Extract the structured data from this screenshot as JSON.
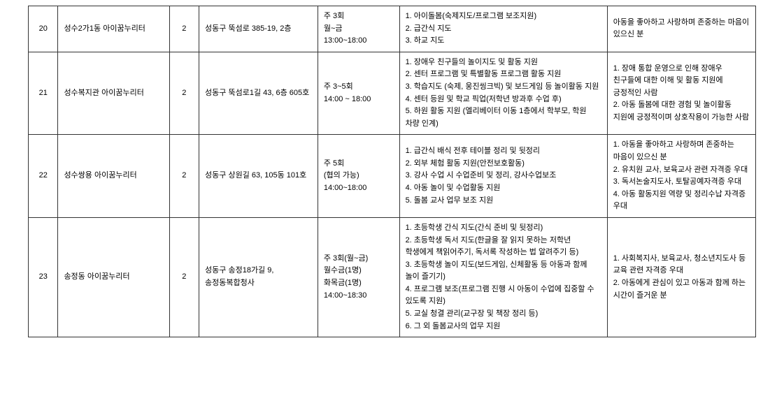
{
  "rows": [
    {
      "num": "20",
      "name": "성수2가1동 아이꿈누리터",
      "count": "2",
      "addr": "성동구 뚝섬로 385-19, 2층",
      "time": "주 3회\n월~금\n13:00~18:00",
      "duties": "1. 아이돌봄(숙제지도/프로그램 보조지원)\n2. 급간식 지도\n3. 하교 지도",
      "qual": "아동을 좋아하고 사랑하며 존중하는 마음이 있으신 분"
    },
    {
      "num": "21",
      "name": "성수복지관 아이꿈누리터",
      "count": "2",
      "addr": "성동구 뚝섬로1길 43, 6층 605호",
      "time": "주 3~5회\n14:00 ~ 18:00",
      "duties": "1. 장애우 친구들의 놀이지도 및 활동 지원\n2. 센터 프로그램 및 특별활동 프로그램 활동 지원\n3. 학습지도 (숙제, 웅진씽크빅) 및 보드게임 등 놀이활동 지원\n4. 센터 등원 및 학교 픽업(저학년 방과후 수업 후)\n5. 하원 활동 지원 (엘리베이터 이동 1층에서 학부모, 학원 차량 인계)",
      "qual": "1. 장애 통합 운영으로 인해 장애우 친구들에 대한 이해 및 활동 지원에 긍정적인 사람\n2. 아동 돌봄에 대한 경험 및 놀이활동 지원에 긍정적이며 상호작용이 가능한 사람"
    },
    {
      "num": "22",
      "name": "성수쌍용 아이꿈누리터",
      "count": "2",
      "addr": "성동구 상원길 63, 105동 101호",
      "time": "주 5회\n(협의 가능)\n14:00~18:00",
      "duties": "1. 급간식 배식 전후 테이블 정리 및 뒷정리\n2. 외부 체험 활동 지원(안전보호활동)\n3. 강사 수업 시 수업준비 및 정리, 강사수업보조\n4. 아동 놀이 및 수업활동 지원\n5. 돌봄 교사 업무 보조 지원",
      "qual": "1. 아동을 좋아하고 사랑하며 존중하는 마음이 있으신 분\n2. 유치원 교사, 보육교사 관련 자격증 우대\n3. 독서논술지도사, 토탈공예자격증 우대\n4. 아동 활동지원 역량 및 정리수납 자격증 우대"
    },
    {
      "num": "23",
      "name": "송정동 아이꿈누리터",
      "count": "2",
      "addr": "성동구 송정18가길 9, 송정동복합청사",
      "time": "주 3회(월~금)\n월수금(1명)\n화목금(1명)\n14:00~18:30",
      "duties": "1. 초등학생 간식 지도(간식 준비 및 뒷정리)\n2. 초등학생 독서 지도(한글을 잘 읽지 못하는 저학년 학생에게   책읽어주기, 독서록 작성하는 법 알려주기 등)\n3. 초등학생 놀이 지도(보드게임, 신체활동 등 아동과 함께 놀이 즐기기)\n4. 프로그램 보조(프로그램 진행 시 아동이 수업에 집중할 수 있도록 지원)\n5. 교실 청결 관리(교구장 및 책장 정리 등)\n6. 그 외 돌봄교사의 업무 지원",
      "qual": "1. 사회복지사, 보육교사, 청소년지도사 등 교육 관련 자격증 우대\n2. 아동에게 관심이 있고 아동과 함께 하는 시간이 즐거운 분"
    }
  ]
}
